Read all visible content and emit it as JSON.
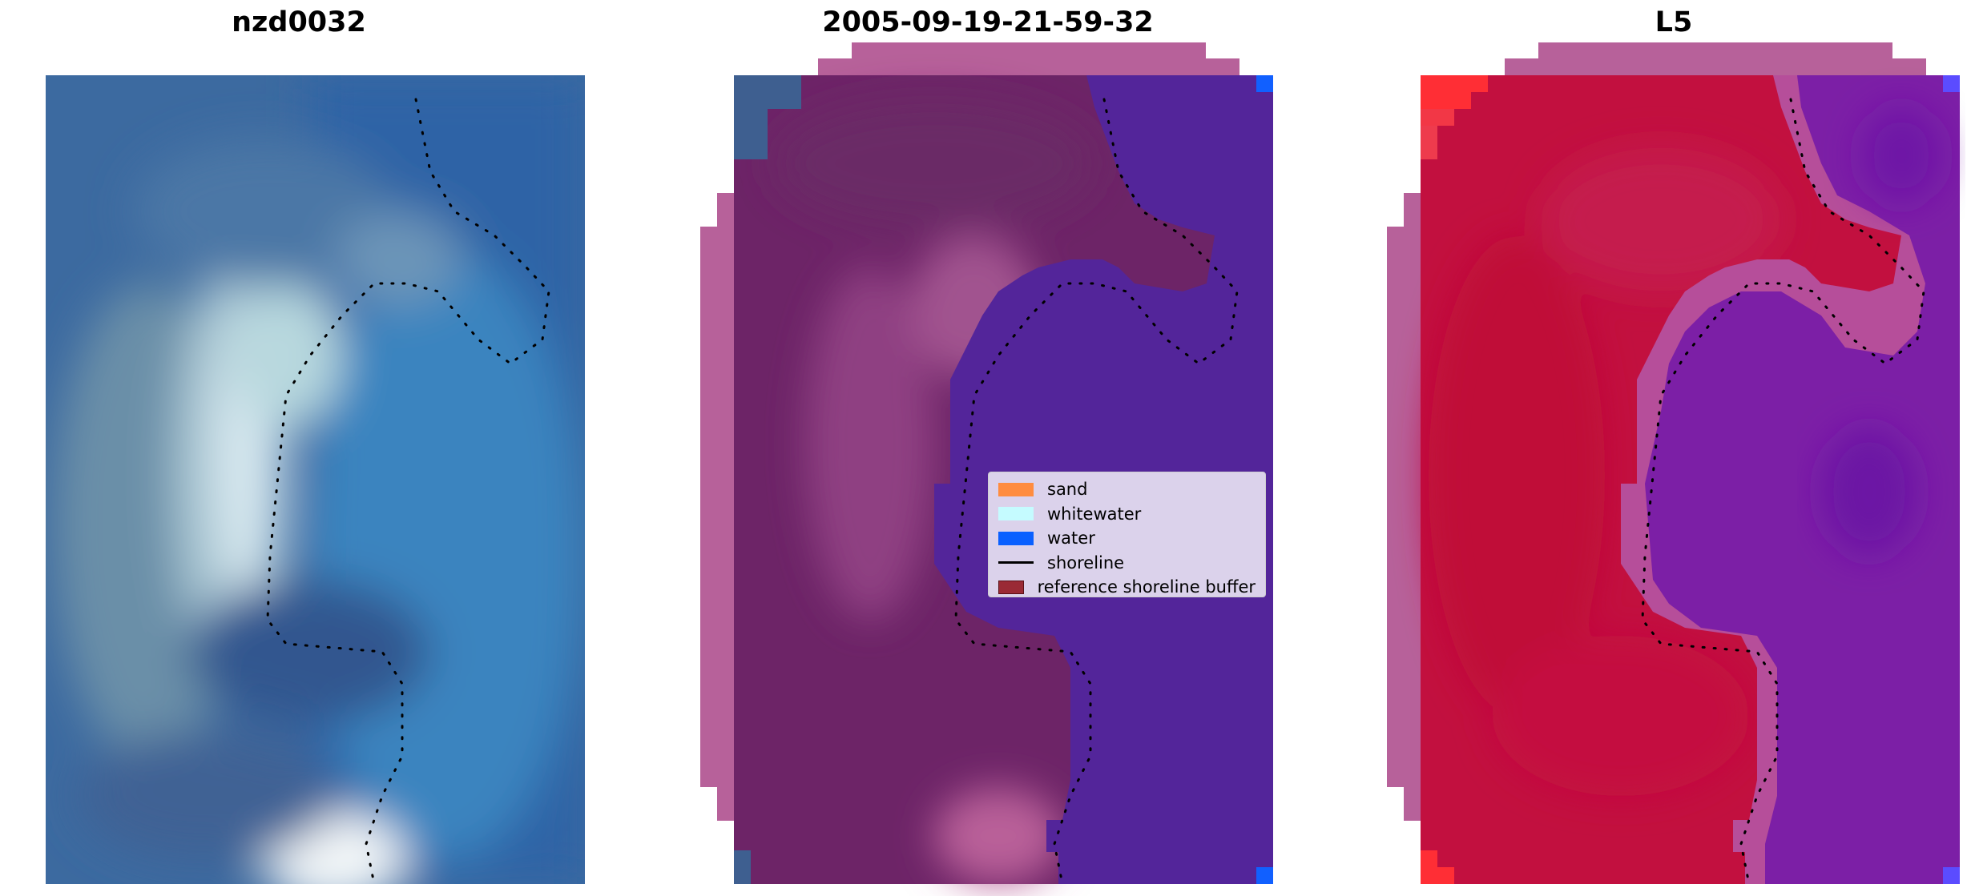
{
  "panels": [
    {
      "title": "nzd0032"
    },
    {
      "title": "2005-09-19-21-59-32"
    },
    {
      "title": "L5"
    }
  ],
  "legend": {
    "items": [
      {
        "label": "sand",
        "color": "#ff8c3f",
        "kind": "patch"
      },
      {
        "label": "whitewater",
        "color": "#c5fbff",
        "kind": "patch"
      },
      {
        "label": "water",
        "color": "#0a60ff",
        "kind": "patch"
      },
      {
        "label": "shoreline",
        "color": "#000000",
        "kind": "line"
      },
      {
        "label": "reference shoreline buffer",
        "color": "#9a2a35",
        "kind": "patch"
      }
    ]
  },
  "colors": {
    "water_rgb": "#2f5f9e",
    "classified_water": "#53259a",
    "classified_land": "#6d2467",
    "buffer_pink": "#b7619a",
    "mndwi_land": "#c2103f",
    "mndwi_water": "#7c1fa6",
    "corner_blue": "#1160ff"
  }
}
